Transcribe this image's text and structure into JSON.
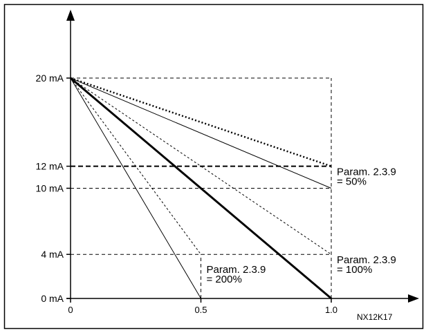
{
  "chart_data": {
    "type": "line",
    "figure_code": "NX12K17",
    "y_ticks": [
      {
        "value": 20,
        "label": "20 mA"
      },
      {
        "value": 12,
        "label": "12 mA"
      },
      {
        "value": 10,
        "label": "10 mA"
      },
      {
        "value": 4,
        "label": "4 mA"
      },
      {
        "value": 0,
        "label": "0 mA"
      }
    ],
    "x_ticks": [
      {
        "value": 0,
        "label": "0"
      },
      {
        "value": 0.5,
        "label": "0.5"
      },
      {
        "value": 1.0,
        "label": "1.0"
      }
    ],
    "xlim": [
      0,
      1.0
    ],
    "ylim": [
      0,
      20
    ],
    "series": [
      {
        "x": [
          0,
          1.0
        ],
        "y": [
          20,
          12
        ],
        "style": "dotted-bold"
      },
      {
        "x": [
          0,
          1.0
        ],
        "y": [
          20,
          10
        ],
        "style": "thin-solid"
      },
      {
        "x": [
          0,
          1.0
        ],
        "y": [
          20,
          4
        ],
        "style": "thin-dotted"
      },
      {
        "x": [
          0,
          1.0
        ],
        "y": [
          20,
          0
        ],
        "style": "bold-solid"
      },
      {
        "x": [
          0,
          0.5
        ],
        "y": [
          20,
          4
        ],
        "style": "thin-dotted"
      },
      {
        "x": [
          0,
          0.5
        ],
        "y": [
          20,
          0
        ],
        "style": "thin-solid"
      }
    ],
    "guides": [
      {
        "type": "h",
        "y": 20,
        "x": [
          0,
          1.0
        ],
        "style": "dashed"
      },
      {
        "type": "h",
        "y": 12,
        "x": [
          0,
          1.0
        ],
        "style": "dashed-bold"
      },
      {
        "type": "h",
        "y": 10,
        "x": [
          0,
          1.0
        ],
        "style": "dashed"
      },
      {
        "type": "h",
        "y": 4,
        "x": [
          0,
          1.0
        ],
        "style": "dashed"
      },
      {
        "type": "v",
        "x": 1.0,
        "y": [
          0,
          20
        ],
        "style": "dashed"
      },
      {
        "type": "v",
        "x": 0.5,
        "y": [
          0,
          4
        ],
        "style": "dashed"
      }
    ],
    "annotations": [
      {
        "line1": "Param. 2.3.9",
        "line2": "= 50%",
        "anchor_x": 1.0,
        "anchor_y": 12
      },
      {
        "line1": "Param. 2.3.9",
        "line2": "= 100%",
        "anchor_x": 1.0,
        "anchor_y": 4
      },
      {
        "line1": "Param. 2.3.9",
        "line2": "= 200%",
        "anchor_x": 0.5,
        "anchor_y": 0
      }
    ]
  }
}
